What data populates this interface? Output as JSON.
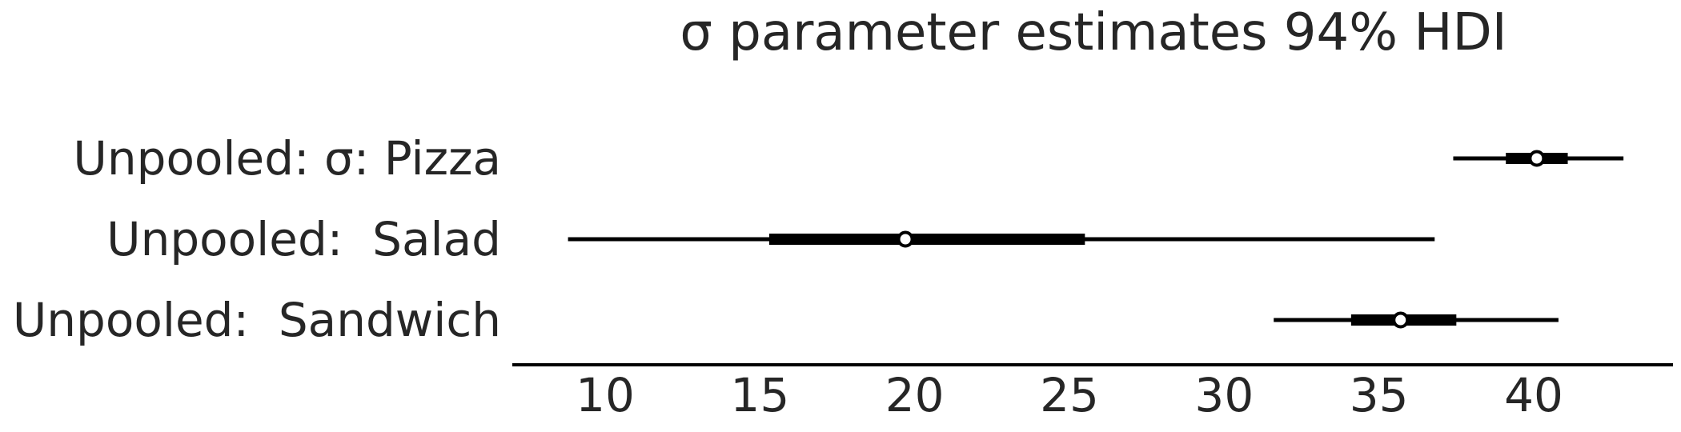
{
  "chart_data": {
    "type": "forest",
    "title": "σ parameter estimates 94% HDI",
    "xlabel": "",
    "ylabel": "",
    "xlim": [
      7.0,
      44.5
    ],
    "xticks": [
      10,
      15,
      20,
      25,
      30,
      35,
      40
    ],
    "xtick_labels": [
      "10",
      "15",
      "20",
      "25",
      "30",
      "35",
      "40"
    ],
    "grid": false,
    "series": [
      {
        "label": "Unpooled: σ: Pizza",
        "hdi_94": [
          37.4,
          42.9
        ],
        "iqr": [
          39.1,
          41.1
        ],
        "median": 40.1
      },
      {
        "label": "Unpooled:  Salad",
        "hdi_94": [
          8.8,
          36.8
        ],
        "iqr": [
          15.3,
          25.5
        ],
        "median": 19.7
      },
      {
        "label": "Unpooled:  Sandwich",
        "hdi_94": [
          31.6,
          40.8
        ],
        "iqr": [
          34.1,
          37.5
        ],
        "median": 35.7
      }
    ],
    "colors": {
      "line": "#000000",
      "marker_fill": "#ffffff",
      "text": "#262626"
    }
  }
}
